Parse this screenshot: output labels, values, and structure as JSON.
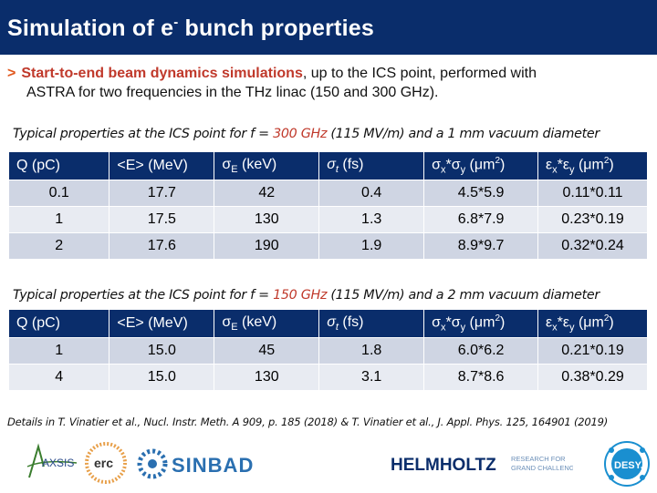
{
  "title": {
    "main": "Simulation of e",
    "sup": "-",
    "rest": " bunch properties"
  },
  "intro": {
    "bullet": ">",
    "highlight": "Start-to-end beam dynamics simulations",
    "line1_rest": ", up to the ICS point, performed with",
    "line2": "ASTRA for two frequencies in the THz linac (150 and 300 GHz)."
  },
  "table1": {
    "caption_a": "Typical properties at the ICS point for f = ",
    "caption_freq": "300 GHz",
    "caption_b": " (115 MV/m) and a 1 mm vacuum diameter",
    "headers": [
      "Q (pC)",
      "<E> (MeV)",
      "σE (keV)",
      "σt (fs)",
      "σx*σy (μm2)",
      "εx*εy (μm2)"
    ],
    "rows": [
      [
        "0.1",
        "17.7",
        "42",
        "0.4",
        "4.5*5.9",
        "0.11*0.11"
      ],
      [
        "1",
        "17.5",
        "130",
        "1.3",
        "6.8*7.9",
        "0.23*0.19"
      ],
      [
        "2",
        "17.6",
        "190",
        "1.9",
        "8.9*9.7",
        "0.32*0.24"
      ]
    ]
  },
  "table2": {
    "caption_a": "Typical properties at the ICS point for f = ",
    "caption_freq": "150 GHz",
    "caption_b": " (115 MV/m) and a 2 mm vacuum diameter",
    "headers": [
      "Q (pC)",
      "<E> (MeV)",
      "σE (keV)",
      "σt (fs)",
      "σx*σy (μm2)",
      "εx*εy (μm2)"
    ],
    "rows": [
      [
        "1",
        "15.0",
        "45",
        "1.8",
        "6.0*6.2",
        "0.21*0.19"
      ],
      [
        "4",
        "15.0",
        "130",
        "3.1",
        "8.7*8.6",
        "0.38*0.29"
      ]
    ]
  },
  "footnote": "Details in T. Vinatier et al., Nucl. Instr. Meth. A 909, p. 185 (2018) & T. Vinatier et al., J. Appl. Phys. 125, 164901 (2019)",
  "logos": {
    "axsis": "AXSIS",
    "erc": "erc",
    "sinbad": "SINBAD",
    "helmholtz": "HELMHOLTZ",
    "helmholtz_sub1": "RESEARCH FOR",
    "helmholtz_sub2": "GRAND CHALLENGES",
    "desy": "DESY."
  },
  "colors": {
    "title_bg": "#0a2d6b",
    "highlight": "#c0392b",
    "bullet": "#e0561b",
    "row_dark": "#cfd5e3",
    "row_light": "#e8ebf2"
  }
}
